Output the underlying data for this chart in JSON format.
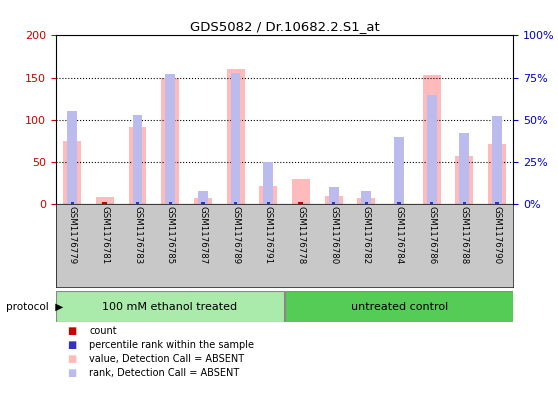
{
  "title": "GDS5082 / Dr.10682.2.S1_at",
  "samples": [
    "GSM1176779",
    "GSM1176781",
    "GSM1176783",
    "GSM1176785",
    "GSM1176787",
    "GSM1176789",
    "GSM1176791",
    "GSM1176778",
    "GSM1176780",
    "GSM1176782",
    "GSM1176784",
    "GSM1176786",
    "GSM1176788",
    "GSM1176790"
  ],
  "value_absent": [
    75,
    9,
    92,
    150,
    8,
    160,
    22,
    30,
    10,
    8,
    0,
    153,
    57,
    72
  ],
  "rank_absent": [
    55,
    0,
    53,
    77,
    8,
    78,
    25,
    0,
    10,
    8,
    40,
    65,
    42,
    52
  ],
  "count_val": [
    2,
    1,
    2,
    2,
    1,
    2,
    2,
    2,
    1,
    1,
    2,
    2,
    2,
    2
  ],
  "rank_val": [
    55,
    0,
    53,
    77,
    8,
    78,
    25,
    0,
    10,
    8,
    40,
    65,
    42,
    52
  ],
  "ylim_left": [
    0,
    200
  ],
  "ylim_right": [
    0,
    100
  ],
  "yticks_left": [
    0,
    50,
    100,
    150,
    200
  ],
  "yticks_right": [
    0,
    25,
    50,
    75,
    100
  ],
  "yticklabels_right": [
    "0%",
    "25%",
    "50%",
    "75%",
    "100%"
  ],
  "group1_label": "100 mM ethanol treated",
  "group2_label": "untreated control",
  "group1_count": 7,
  "group2_count": 7,
  "protocol_label": "protocol",
  "pink_color": "#ffbbbb",
  "lightblue_color": "#bbbbee",
  "red_color": "#cc0000",
  "blue_color": "#3333bb",
  "bg_color": "#ffffff",
  "left_tick_color": "#cc0000",
  "right_tick_color": "#0000cc",
  "group1_bg": "#aaeaaa",
  "group2_bg": "#55cc55",
  "xlabel_bg": "#c8c8c8"
}
